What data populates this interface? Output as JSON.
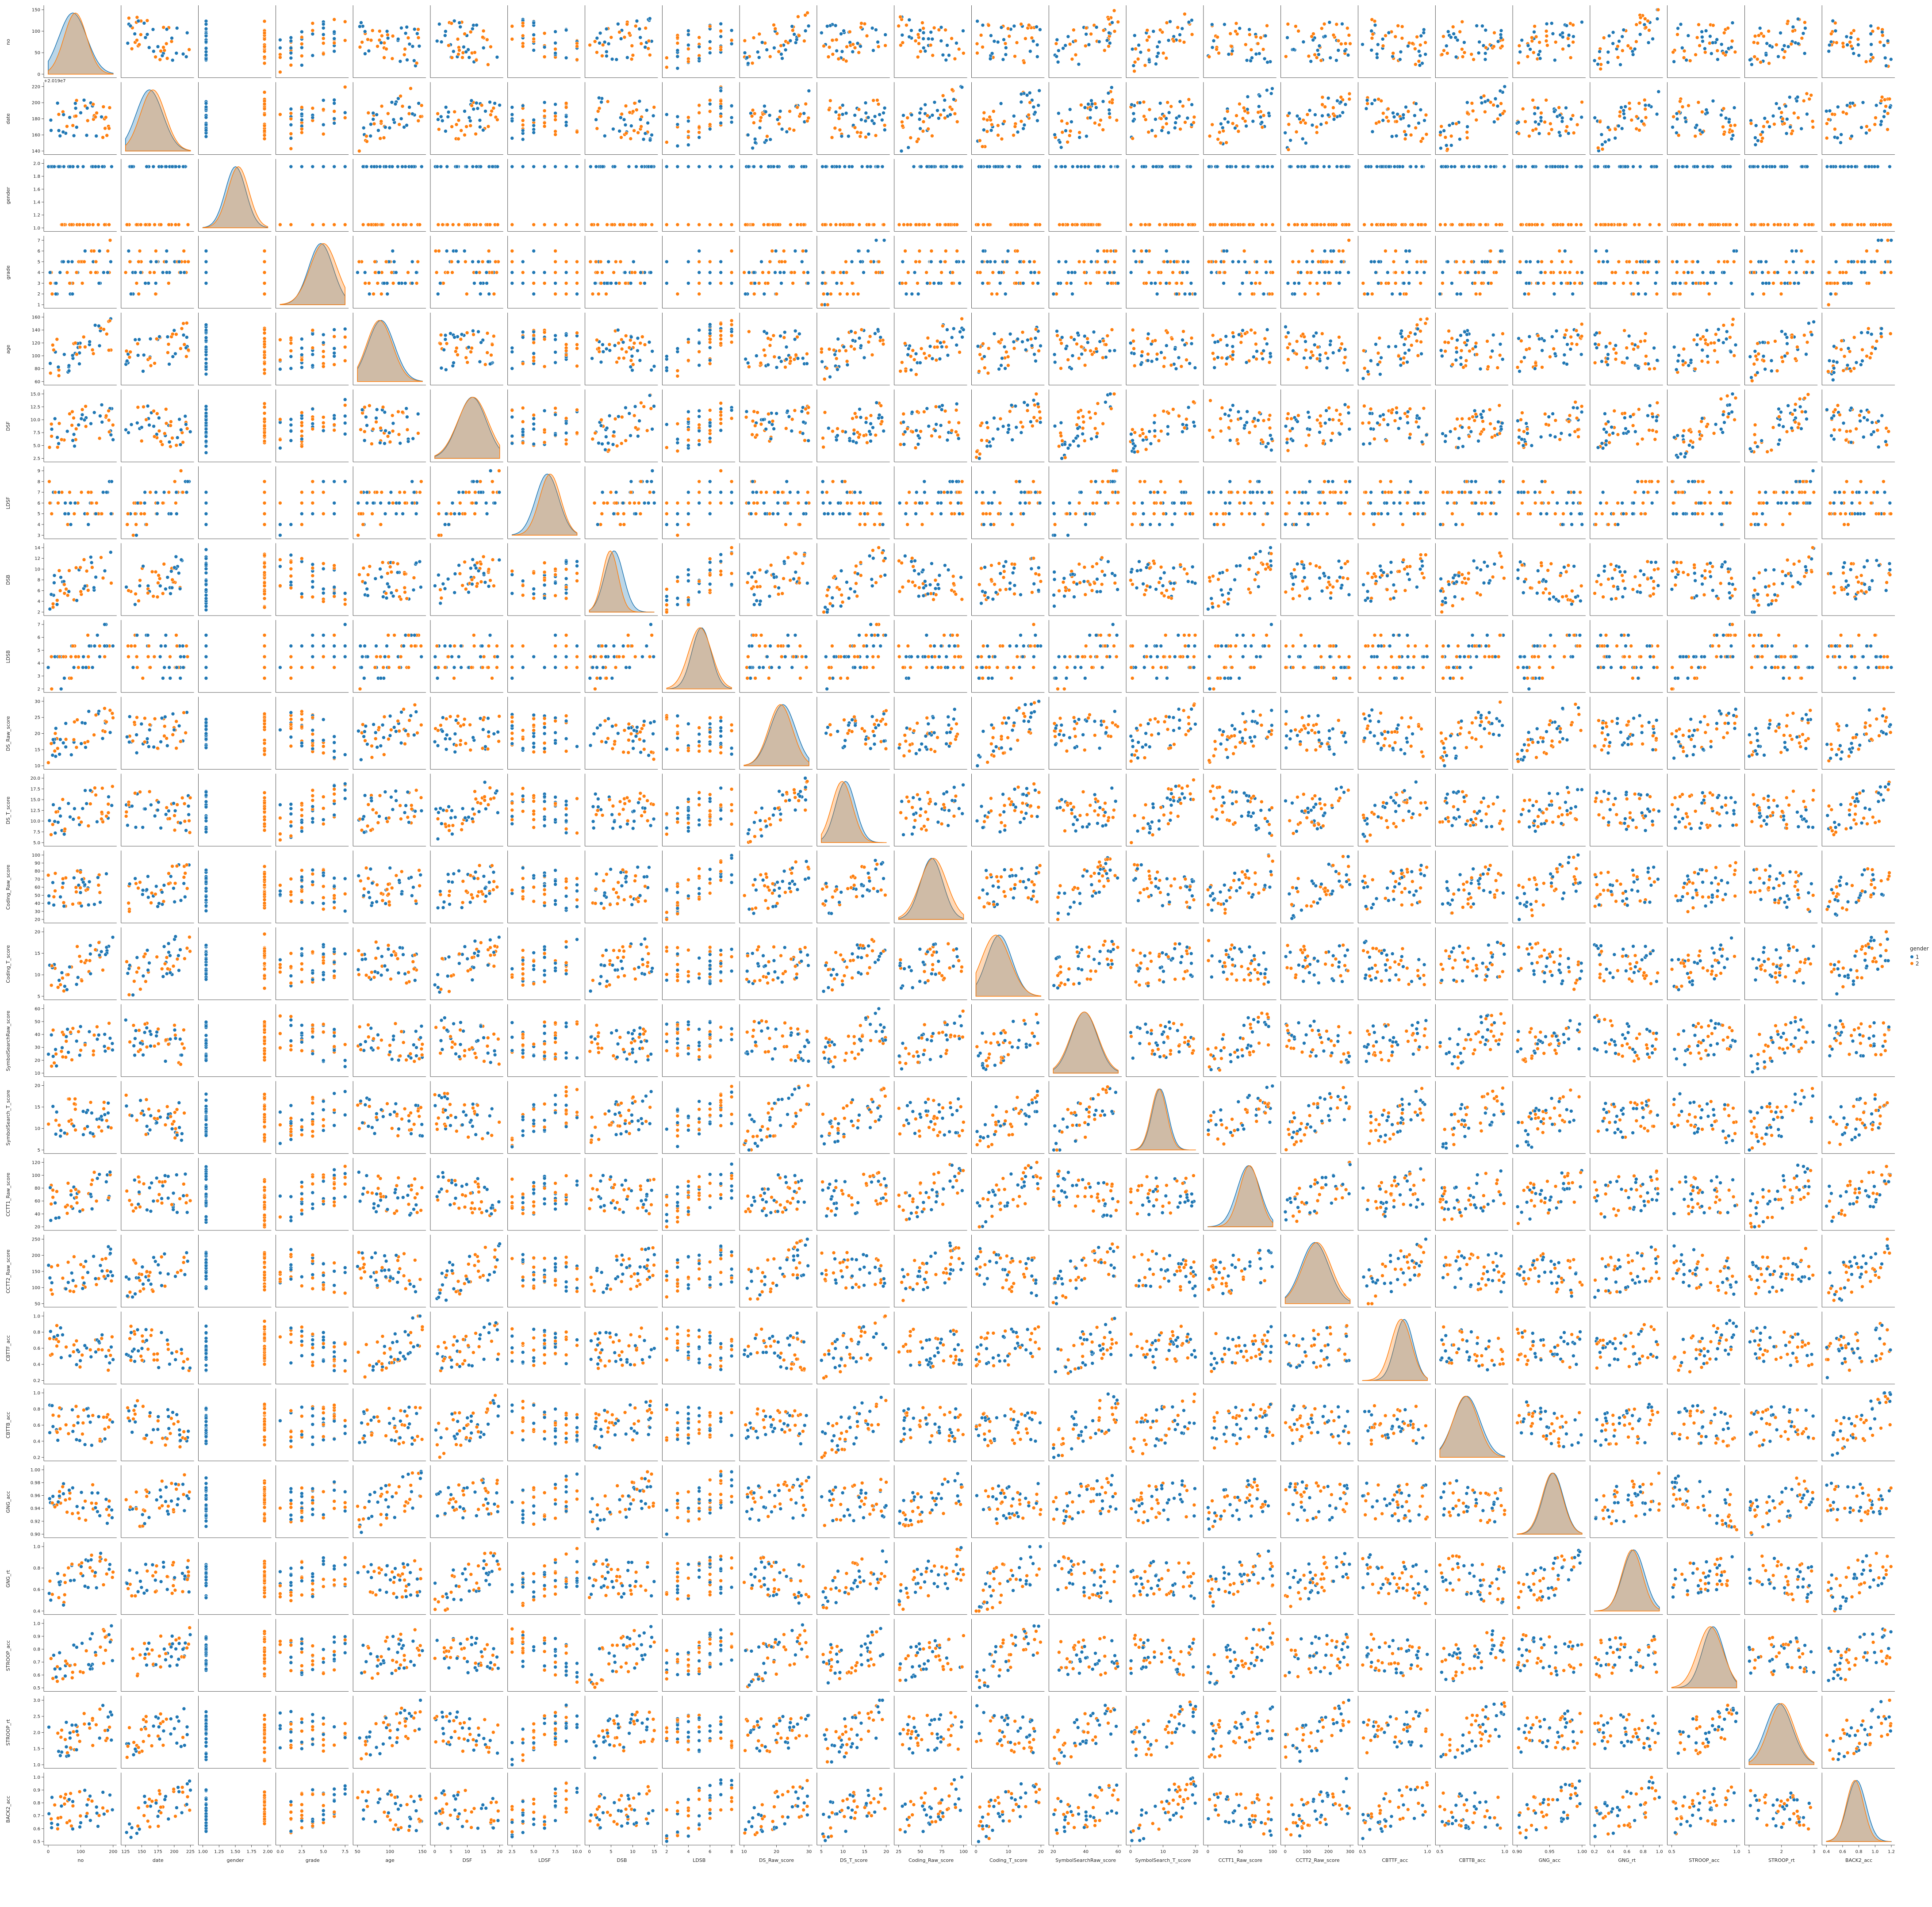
{
  "chart_data": {
    "type": "scatter",
    "subtype": "pairplot",
    "hue": "gender",
    "variables": [
      "no",
      "date",
      "gender",
      "grade",
      "age",
      "DSF",
      "LDSF",
      "DSB",
      "LDSB",
      "DS_Raw_score",
      "DS_T_score",
      "Coding_Raw_score",
      "Coding_T_score",
      "SymbolSearchRaw_score",
      "SymbolSearch_T_score",
      "CCTT1_Raw_score",
      "CCTT2_Raw_score",
      "CBTTF_acc",
      "CBTTB_acc",
      "GNG_acc",
      "GNG_rt",
      "STROOP_acc",
      "STROOP_rt",
      "BACK2_acc"
    ],
    "offset_label": "+2.019e7",
    "x_ticks": [
      [
        "0",
        "100",
        "200"
      ],
      [
        "125",
        "150",
        "175",
        "200",
        "225"
      ],
      [
        "1.00",
        "1.25",
        "1.50",
        "1.75",
        "2.00"
      ],
      [
        "0.0",
        "2.5",
        "5.0",
        "7.5"
      ],
      [
        "50",
        "100",
        "150"
      ],
      [
        "0",
        "5",
        "10",
        "15",
        "20"
      ],
      [
        "2.5",
        "5.0",
        "7.5",
        "10.0"
      ],
      [
        "0",
        "5",
        "10",
        "15"
      ],
      [
        "2",
        "4",
        "6",
        "8"
      ],
      [
        "10",
        "20",
        "30"
      ],
      [
        "5",
        "10",
        "15",
        "20"
      ],
      [
        "25",
        "50",
        "75",
        "100"
      ],
      [
        "0",
        "10",
        "20"
      ],
      [
        "20",
        "40",
        "60"
      ],
      [
        "0",
        "10",
        "20"
      ],
      [
        "0",
        "50",
        "100"
      ],
      [
        "0",
        "100",
        "200",
        "300"
      ],
      [
        "0.5",
        "1.0"
      ],
      [
        "0.5",
        "1.0"
      ],
      [
        "0.90",
        "0.95",
        "1.00"
      ],
      [
        "0.2",
        "0.4",
        "0.6",
        "0.8",
        "1.0"
      ],
      [
        "0.5",
        "1.0"
      ],
      [
        "1",
        "2",
        "3"
      ],
      [
        "0.4",
        "0.6",
        "0.8",
        "1.0",
        "1.2"
      ]
    ],
    "y_ticks": [
      [
        "0",
        "50",
        "100",
        "150"
      ],
      [
        "140",
        "160",
        "180",
        "200",
        "220"
      ],
      [
        "1.0",
        "1.2",
        "1.4",
        "1.6",
        "1.8",
        "2.0"
      ],
      [
        "1",
        "2",
        "3",
        "4",
        "5",
        "6",
        "7"
      ],
      [
        "60",
        "80",
        "100",
        "120",
        "140",
        "160"
      ],
      [
        "2.5",
        "5.0",
        "7.5",
        "10.0",
        "12.5",
        "15.0"
      ],
      [
        "3",
        "4",
        "5",
        "6",
        "7",
        "8",
        "9"
      ],
      [
        "2",
        "4",
        "6",
        "8",
        "10",
        "12",
        "14"
      ],
      [
        "2",
        "3",
        "4",
        "5",
        "6",
        "7"
      ],
      [
        "10",
        "15",
        "20",
        "25",
        "30"
      ],
      [
        "5.0",
        "7.5",
        "10.0",
        "12.5",
        "15.0",
        "17.5",
        "20.0"
      ],
      [
        "20",
        "30",
        "40",
        "50",
        "60",
        "70",
        "80",
        "90",
        "100"
      ],
      [
        "5",
        "10",
        "15",
        "20"
      ],
      [
        "10",
        "20",
        "30",
        "40",
        "50",
        "60"
      ],
      [
        "5",
        "10",
        "15",
        "20"
      ],
      [
        "20",
        "40",
        "60",
        "80",
        "100",
        "120"
      ],
      [
        "50",
        "100",
        "150",
        "200",
        "250"
      ],
      [
        "0.2",
        "0.4",
        "0.6",
        "0.8",
        "1.0"
      ],
      [
        "0.2",
        "0.4",
        "0.6",
        "0.8",
        "1.0"
      ],
      [
        "0.90",
        "0.92",
        "0.94",
        "0.96",
        "0.98",
        "1.00"
      ],
      [
        "0.4",
        "0.6",
        "0.8",
        "1.0"
      ],
      [
        "0.5",
        "0.6",
        "0.7",
        "0.8",
        "0.9",
        "1.0"
      ],
      [
        "1.0",
        "1.5",
        "2.0",
        "2.5",
        "3.0"
      ],
      [
        "0.5",
        "0.6",
        "0.7",
        "0.8",
        "0.9",
        "1.0"
      ]
    ],
    "legend": {
      "title": "gender",
      "entries": [
        "1",
        "2"
      ],
      "placement": "right"
    },
    "series": [
      {
        "name": "1",
        "color": "#1f77b4"
      },
      {
        "name": "2",
        "color": "#ff7f0e"
      }
    ],
    "diagonal": "kde",
    "off_diagonal": "scatter",
    "grid": false
  }
}
